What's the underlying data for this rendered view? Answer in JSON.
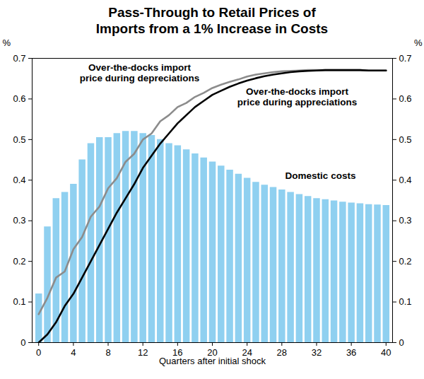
{
  "chart_data": {
    "type": "combo",
    "title": "Pass-Through to Retail Prices of Imports from a 1% Increase in Costs",
    "xlabel": "Quarters after initial shock",
    "ylabel": "%",
    "x": [
      0,
      1,
      2,
      3,
      4,
      5,
      6,
      7,
      8,
      9,
      10,
      11,
      12,
      13,
      14,
      15,
      16,
      17,
      18,
      19,
      20,
      21,
      22,
      23,
      24,
      25,
      26,
      27,
      28,
      29,
      30,
      31,
      32,
      33,
      34,
      35,
      36,
      37,
      38,
      39,
      40
    ],
    "series": [
      {
        "name": "Domestic costs",
        "type": "bar",
        "color": "#8fd0f0",
        "values": [
          0.12,
          0.285,
          0.355,
          0.37,
          0.39,
          0.45,
          0.49,
          0.505,
          0.505,
          0.515,
          0.52,
          0.52,
          0.515,
          0.51,
          0.5,
          0.49,
          0.485,
          0.475,
          0.465,
          0.455,
          0.445,
          0.435,
          0.425,
          0.415,
          0.405,
          0.395,
          0.388,
          0.382,
          0.376,
          0.37,
          0.365,
          0.36,
          0.355,
          0.352,
          0.349,
          0.346,
          0.344,
          0.342,
          0.34,
          0.339,
          0.338
        ]
      },
      {
        "name": "Over-the-docks import price during depreciations",
        "type": "line",
        "color": "#8c8c8c",
        "values": [
          0.07,
          0.11,
          0.16,
          0.175,
          0.23,
          0.26,
          0.31,
          0.335,
          0.38,
          0.405,
          0.445,
          0.465,
          0.5,
          0.515,
          0.545,
          0.56,
          0.58,
          0.59,
          0.605,
          0.615,
          0.627,
          0.635,
          0.642,
          0.648,
          0.655,
          0.66,
          0.663,
          0.666,
          0.668,
          0.669,
          0.67,
          0.671,
          0.671,
          0.671,
          0.671,
          0.671,
          0.671,
          0.671,
          0.67,
          0.67,
          0.67
        ]
      },
      {
        "name": "Over-the-docks import price during appreciations",
        "type": "line",
        "color": "#000000",
        "values": [
          0.0,
          0.02,
          0.05,
          0.09,
          0.12,
          0.16,
          0.2,
          0.24,
          0.28,
          0.32,
          0.355,
          0.39,
          0.43,
          0.46,
          0.49,
          0.515,
          0.54,
          0.56,
          0.58,
          0.595,
          0.61,
          0.62,
          0.63,
          0.638,
          0.645,
          0.651,
          0.656,
          0.66,
          0.663,
          0.666,
          0.668,
          0.669,
          0.67,
          0.671,
          0.671,
          0.671,
          0.671,
          0.671,
          0.67,
          0.67,
          0.67
        ]
      }
    ],
    "xlim": [
      -0.75,
      40.75
    ],
    "xticks": [
      0,
      4,
      8,
      12,
      16,
      20,
      24,
      28,
      32,
      36,
      40
    ],
    "ylim": [
      0,
      0.7
    ],
    "yticks": [
      0,
      0.1,
      0.2,
      0.3,
      0.4,
      0.5,
      0.6,
      0.7
    ],
    "grid": false,
    "legend": false
  }
}
